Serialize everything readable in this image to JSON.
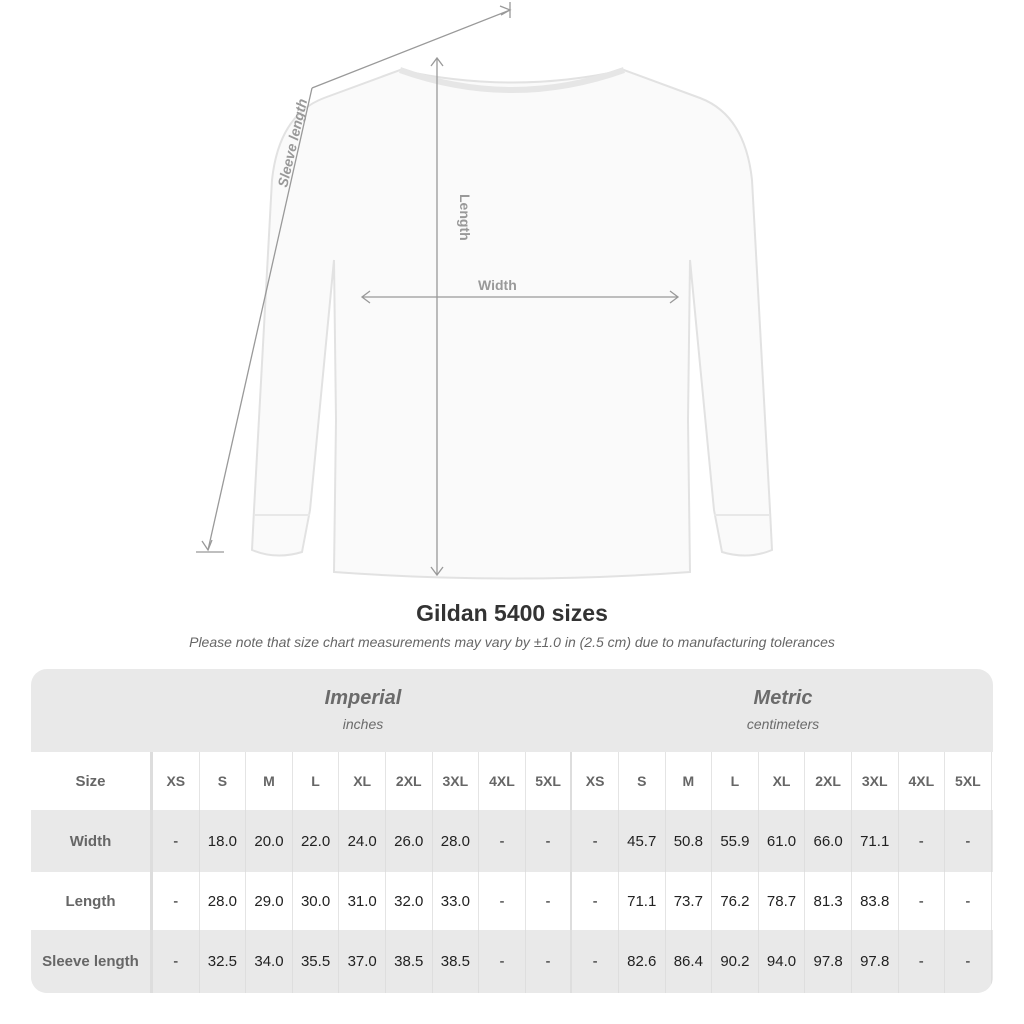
{
  "diagram": {
    "sleeve_label": "Sleeve length",
    "length_label": "Length",
    "width_label": "Width"
  },
  "title": "Gildan 5400 sizes",
  "note": "Please note that size chart measurements may vary by ±1.0 in (2.5 cm) due to manufacturing tolerances",
  "table": {
    "imperial": {
      "label": "Imperial",
      "unit": "inches"
    },
    "metric": {
      "label": "Metric",
      "unit": "centimeters"
    },
    "size_label": "Size",
    "sizes": [
      "XS",
      "S",
      "M",
      "L",
      "XL",
      "2XL",
      "3XL",
      "4XL",
      "5XL"
    ],
    "rows": [
      {
        "label": "Width",
        "imperial": [
          "-",
          "18.0",
          "20.0",
          "22.0",
          "24.0",
          "26.0",
          "28.0",
          "-",
          "-"
        ],
        "metric": [
          "-",
          "45.7",
          "50.8",
          "55.9",
          "61.0",
          "66.0",
          "71.1",
          "-",
          "-"
        ]
      },
      {
        "label": "Length",
        "imperial": [
          "-",
          "28.0",
          "29.0",
          "30.0",
          "31.0",
          "32.0",
          "33.0",
          "-",
          "-"
        ],
        "metric": [
          "-",
          "71.1",
          "73.7",
          "76.2",
          "78.7",
          "81.3",
          "83.8",
          "-",
          "-"
        ]
      },
      {
        "label": "Sleeve length",
        "imperial": [
          "-",
          "32.5",
          "34.0",
          "35.5",
          "37.0",
          "38.5",
          "38.5",
          "-",
          "-"
        ],
        "metric": [
          "-",
          "82.6",
          "86.4",
          "90.2",
          "94.0",
          "97.8",
          "97.8",
          "-",
          "-"
        ]
      }
    ]
  }
}
